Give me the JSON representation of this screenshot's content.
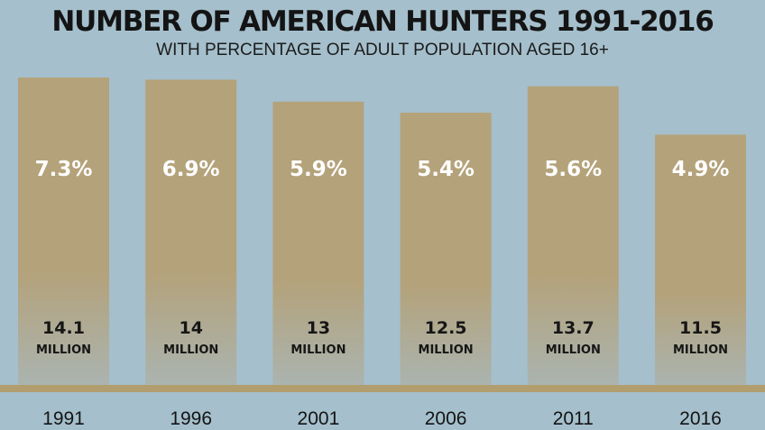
{
  "chart_data": {
    "type": "bar",
    "title": "NUMBER OF AMERICAN HUNTERS 1991-2016",
    "subtitle": "WITH PERCENTAGE OF ADULT POPULATION AGED 16+",
    "categories": [
      "1991",
      "1996",
      "2001",
      "2006",
      "2011",
      "2016"
    ],
    "series": [
      {
        "values": [
          14.1,
          14,
          13,
          12.5,
          13.7,
          11.5
        ],
        "value_labels": [
          "14.1",
          "14",
          "13",
          "12.5",
          "13.7",
          "11.5"
        ],
        "unit_label": "MILLION",
        "percent_labels": [
          "7.3%",
          "6.9%",
          "5.9%",
          "5.4%",
          "5.6%",
          "4.9%"
        ]
      }
    ],
    "grid": false,
    "legend": "none"
  },
  "colors": {
    "background": "#a5bfcc",
    "bar_top": "#b4a27a",
    "bar_bottom": "#aab4b0",
    "baseline": "#b29d6f"
  }
}
